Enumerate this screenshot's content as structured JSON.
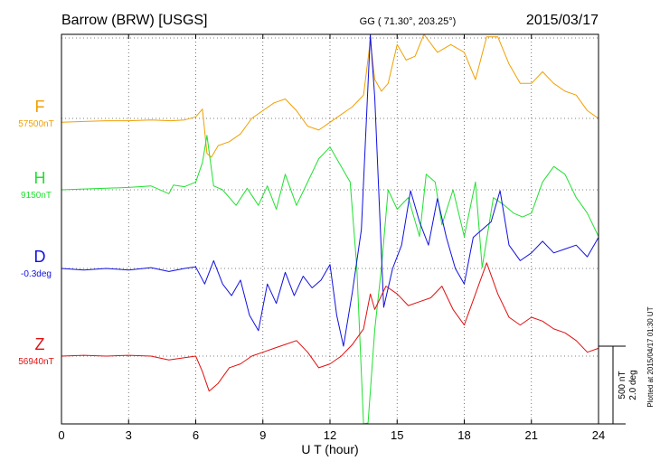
{
  "header": {
    "station": "Barrow (BRW)  [USGS]",
    "coords": "GG ( 71.30°, 203.25°)",
    "date": "2015/03/17"
  },
  "side_note": "Plotted at 2015/04/17 01:30 UT",
  "scale": {
    "line1": "500 nT",
    "line2": "2.0 deg"
  },
  "chart_data": {
    "type": "line",
    "xlabel": "U T (hour)",
    "xlim": [
      0,
      24
    ],
    "xticks": [
      "0",
      "3",
      "6",
      "9",
      "12",
      "15",
      "18",
      "21",
      "24"
    ],
    "grid": true,
    "units_per_division": "500 nT / 2.0 deg",
    "series": [
      {
        "name": "F",
        "baseline_label": "57500nT",
        "color": "#f0a000",
        "points": [
          [
            0,
            -0.05
          ],
          [
            1,
            -0.04
          ],
          [
            2,
            -0.03
          ],
          [
            3,
            -0.03
          ],
          [
            4,
            -0.02
          ],
          [
            4.9,
            -0.03
          ],
          [
            5.5,
            -0.02
          ],
          [
            6,
            0.02
          ],
          [
            6.3,
            0.12
          ],
          [
            6.5,
            -0.45
          ],
          [
            6.7,
            -0.5
          ],
          [
            7,
            -0.35
          ],
          [
            7.5,
            -0.3
          ],
          [
            8,
            -0.2
          ],
          [
            8.5,
            0.0
          ],
          [
            9,
            0.1
          ],
          [
            9.5,
            0.2
          ],
          [
            10,
            0.25
          ],
          [
            10.5,
            0.1
          ],
          [
            11,
            -0.1
          ],
          [
            11.5,
            -0.15
          ],
          [
            12,
            -0.05
          ],
          [
            12.5,
            0.05
          ],
          [
            13,
            0.15
          ],
          [
            13.5,
            0.3
          ],
          [
            13.8,
            1.0
          ],
          [
            14,
            0.5
          ],
          [
            14.3,
            0.35
          ],
          [
            14.6,
            0.45
          ],
          [
            15,
            0.95
          ],
          [
            15.4,
            0.75
          ],
          [
            15.8,
            0.8
          ],
          [
            16.2,
            1.1
          ],
          [
            16.8,
            0.85
          ],
          [
            17.4,
            0.95
          ],
          [
            18,
            0.85
          ],
          [
            18.5,
            0.5
          ],
          [
            19,
            1.05
          ],
          [
            19.5,
            1.05
          ],
          [
            20,
            0.7
          ],
          [
            20.5,
            0.45
          ],
          [
            21,
            0.45
          ],
          [
            21.5,
            0.6
          ],
          [
            22,
            0.45
          ],
          [
            22.5,
            0.35
          ],
          [
            23,
            0.3
          ],
          [
            23.5,
            0.1
          ],
          [
            24,
            0.0
          ]
        ]
      },
      {
        "name": "H",
        "baseline_label": "9150nT",
        "color": "#20e030",
        "points": [
          [
            0,
            0
          ],
          [
            1,
            0.01
          ],
          [
            2,
            0.02
          ],
          [
            3,
            0.03
          ],
          [
            4,
            0.05
          ],
          [
            4.8,
            -0.05
          ],
          [
            5,
            0.06
          ],
          [
            5.5,
            0.04
          ],
          [
            6,
            0.1
          ],
          [
            6.3,
            0.35
          ],
          [
            6.5,
            0.7
          ],
          [
            6.8,
            0.05
          ],
          [
            7.2,
            0.0
          ],
          [
            7.8,
            -0.2
          ],
          [
            8.3,
            0.02
          ],
          [
            8.8,
            -0.2
          ],
          [
            9.2,
            0.05
          ],
          [
            9.6,
            -0.25
          ],
          [
            10,
            0.2
          ],
          [
            10.5,
            -0.2
          ],
          [
            11,
            0.1
          ],
          [
            11.5,
            0.4
          ],
          [
            12,
            0.55
          ],
          [
            12.5,
            0.3
          ],
          [
            12.9,
            0.1
          ],
          [
            13.2,
            -1.0
          ],
          [
            13.5,
            -3.5
          ],
          [
            13.7,
            -3.0
          ],
          [
            14,
            -1.8
          ],
          [
            14.3,
            -1.0
          ],
          [
            14.6,
            0.0
          ],
          [
            15,
            -0.25
          ],
          [
            15.5,
            -0.1
          ],
          [
            16,
            -0.6
          ],
          [
            16.3,
            0.2
          ],
          [
            16.7,
            0.1
          ],
          [
            17,
            -0.45
          ],
          [
            17.5,
            0.0
          ],
          [
            18,
            -0.6
          ],
          [
            18.5,
            0.1
          ],
          [
            18.8,
            -1.0
          ],
          [
            19.3,
            -0.1
          ],
          [
            19.8,
            -0.2
          ],
          [
            20.2,
            -0.3
          ],
          [
            20.6,
            -0.35
          ],
          [
            21,
            -0.3
          ],
          [
            21.5,
            0.1
          ],
          [
            22,
            0.3
          ],
          [
            22.5,
            0.2
          ],
          [
            23,
            -0.1
          ],
          [
            23.5,
            -0.3
          ],
          [
            24,
            -0.6
          ]
        ]
      },
      {
        "name": "D",
        "baseline_label": "-0.3deg",
        "color": "#1010e0",
        "points": [
          [
            0,
            0
          ],
          [
            1,
            -0.02
          ],
          [
            2,
            0.0
          ],
          [
            3,
            -0.02
          ],
          [
            4,
            0.01
          ],
          [
            4.8,
            -0.04
          ],
          [
            5.5,
            0.0
          ],
          [
            6,
            0.02
          ],
          [
            6.4,
            -0.2
          ],
          [
            6.8,
            0.1
          ],
          [
            7.2,
            -0.2
          ],
          [
            7.6,
            -0.35
          ],
          [
            8,
            -0.15
          ],
          [
            8.4,
            -0.6
          ],
          [
            8.8,
            -0.8
          ],
          [
            9.2,
            -0.2
          ],
          [
            9.6,
            -0.45
          ],
          [
            10,
            -0.05
          ],
          [
            10.4,
            -0.35
          ],
          [
            10.8,
            -0.1
          ],
          [
            11.2,
            -0.25
          ],
          [
            11.6,
            -0.15
          ],
          [
            12,
            0.05
          ],
          [
            12.3,
            -0.6
          ],
          [
            12.6,
            -1.0
          ],
          [
            13,
            -0.3
          ],
          [
            13.4,
            0.5
          ],
          [
            13.8,
            4.0
          ],
          [
            14,
            2.2
          ],
          [
            14.4,
            -0.5
          ],
          [
            14.8,
            0.0
          ],
          [
            15.2,
            0.3
          ],
          [
            15.6,
            1.0
          ],
          [
            16,
            0.6
          ],
          [
            16.4,
            0.3
          ],
          [
            16.8,
            0.9
          ],
          [
            17.2,
            0.4
          ],
          [
            17.6,
            0.0
          ],
          [
            18,
            -0.2
          ],
          [
            18.4,
            0.4
          ],
          [
            18.8,
            0.5
          ],
          [
            19.2,
            0.6
          ],
          [
            19.6,
            1.0
          ],
          [
            20,
            0.3
          ],
          [
            20.5,
            0.1
          ],
          [
            21,
            0.2
          ],
          [
            21.5,
            0.35
          ],
          [
            22,
            0.2
          ],
          [
            22.5,
            0.25
          ],
          [
            23,
            0.3
          ],
          [
            23.5,
            0.15
          ],
          [
            24,
            0.4
          ]
        ]
      },
      {
        "name": "Z",
        "baseline_label": "56940nT",
        "color": "#e01010",
        "points": [
          [
            0,
            0
          ],
          [
            1,
            0.01
          ],
          [
            2,
            0.0
          ],
          [
            3,
            0.01
          ],
          [
            4,
            0.0
          ],
          [
            4.8,
            -0.05
          ],
          [
            5.5,
            -0.02
          ],
          [
            6,
            0.0
          ],
          [
            6.3,
            -0.2
          ],
          [
            6.6,
            -0.45
          ],
          [
            7,
            -0.35
          ],
          [
            7.5,
            -0.15
          ],
          [
            8,
            -0.1
          ],
          [
            8.5,
            0.0
          ],
          [
            9,
            0.05
          ],
          [
            9.5,
            0.1
          ],
          [
            10,
            0.15
          ],
          [
            10.5,
            0.2
          ],
          [
            11,
            0.05
          ],
          [
            11.5,
            -0.15
          ],
          [
            12,
            -0.1
          ],
          [
            12.5,
            0.0
          ],
          [
            13,
            0.15
          ],
          [
            13.5,
            0.35
          ],
          [
            13.8,
            0.8
          ],
          [
            14,
            0.6
          ],
          [
            14.5,
            0.9
          ],
          [
            15,
            0.8
          ],
          [
            15.5,
            0.65
          ],
          [
            16,
            0.7
          ],
          [
            16.5,
            0.75
          ],
          [
            17,
            0.9
          ],
          [
            17.5,
            0.6
          ],
          [
            18,
            0.4
          ],
          [
            18.5,
            0.8
          ],
          [
            19,
            1.2
          ],
          [
            19.5,
            0.8
          ],
          [
            20,
            0.5
          ],
          [
            20.5,
            0.4
          ],
          [
            21,
            0.5
          ],
          [
            21.5,
            0.45
          ],
          [
            22,
            0.35
          ],
          [
            22.5,
            0.3
          ],
          [
            23,
            0.2
          ],
          [
            23.5,
            0.05
          ],
          [
            24,
            0.1
          ]
        ]
      }
    ]
  }
}
